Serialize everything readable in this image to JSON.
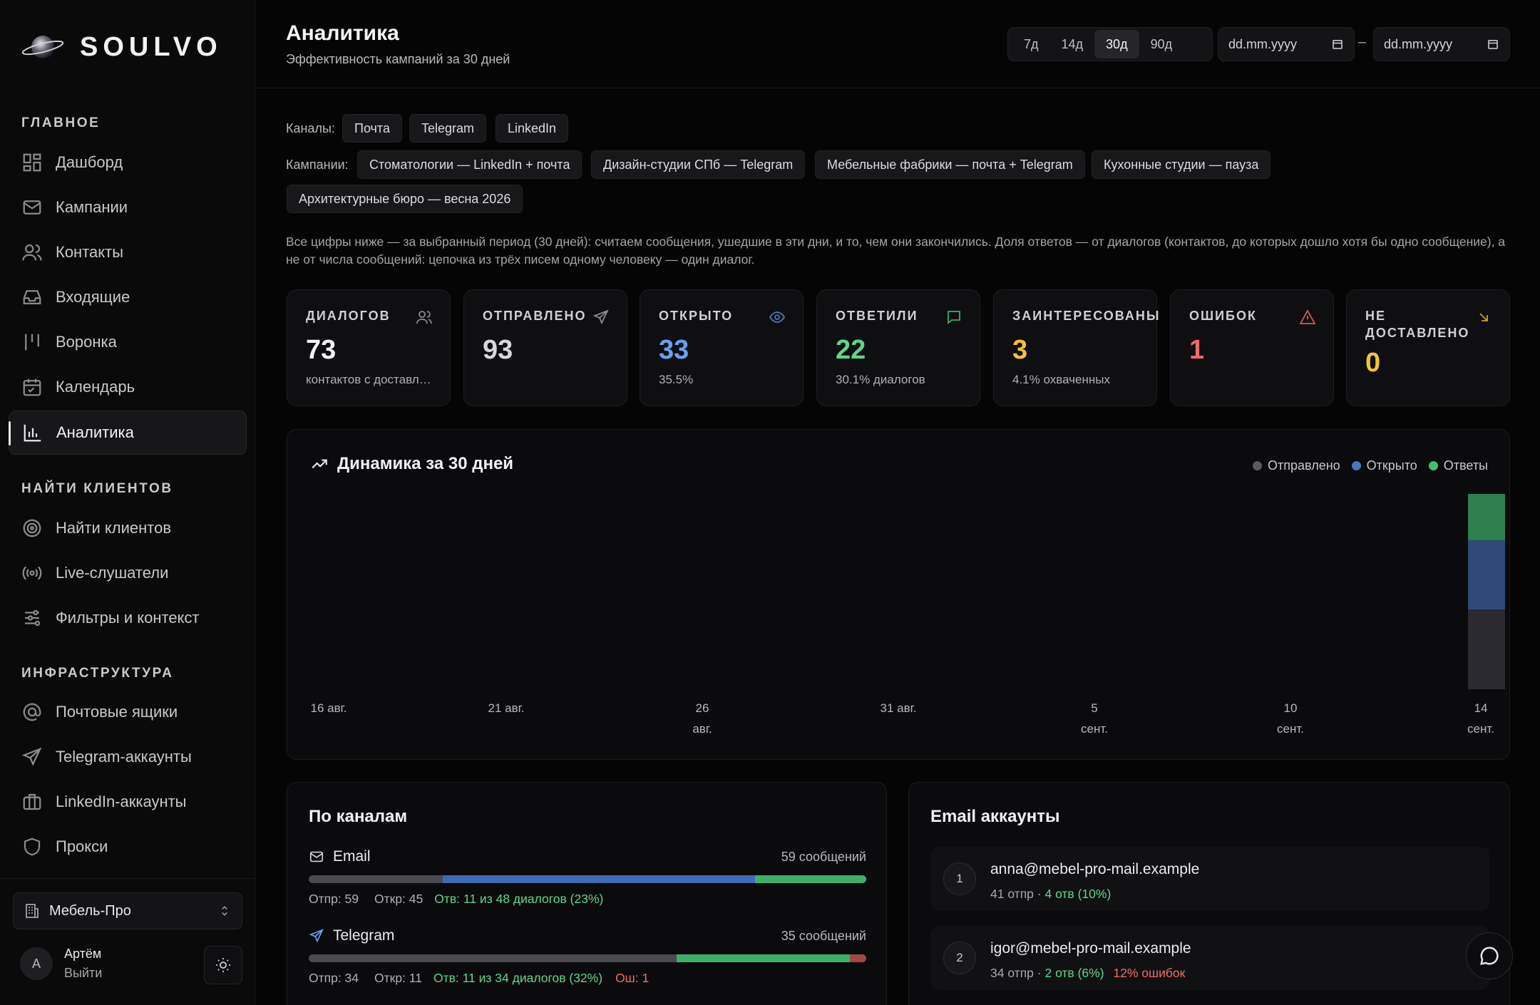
{
  "brand": {
    "name": "SOULVO"
  },
  "sidebar": {
    "sections": {
      "main": "ГЛАВНОЕ",
      "find": "НАЙТИ КЛИЕНТОВ",
      "infra": "ИНФРАСТРУКТУРА"
    },
    "items": [
      {
        "label": "Дашборд",
        "icon": "dashboard-icon"
      },
      {
        "label": "Кампании",
        "icon": "mail-icon"
      },
      {
        "label": "Контакты",
        "icon": "users-icon"
      },
      {
        "label": "Входящие",
        "icon": "inbox-icon"
      },
      {
        "label": "Воронка",
        "icon": "funnel-icon"
      },
      {
        "label": "Календарь",
        "icon": "calendar-icon"
      },
      {
        "label": "Аналитика",
        "icon": "chart-icon",
        "active": true
      },
      {
        "label": "Найти клиентов",
        "icon": "target-icon"
      },
      {
        "label": "Live-слушатели",
        "icon": "broadcast-icon"
      },
      {
        "label": "Фильтры и контекст",
        "icon": "sliders-icon"
      },
      {
        "label": "Почтовые ящики",
        "icon": "at-icon"
      },
      {
        "label": "Telegram-аккаунты",
        "icon": "send-icon"
      },
      {
        "label": "LinkedIn-аккаунты",
        "icon": "briefcase-icon"
      },
      {
        "label": "Прокси",
        "icon": "shield-icon"
      }
    ],
    "org": "Мебель-Про",
    "user": {
      "initial": "А",
      "name": "Артём",
      "logout": "Выйти"
    }
  },
  "header": {
    "title": "Аналитика",
    "subtitle": "Эффективность кампаний за 30 дней",
    "periods": [
      "7д",
      "14д",
      "30д",
      "90д"
    ],
    "active_period": "30д",
    "date_from_placeholder": "dd.mm.yyyy",
    "date_to_placeholder": "dd.mm.yyyy",
    "date_sep": "–"
  },
  "filters": {
    "channels_label": "Каналы:",
    "channels": [
      "Почта",
      "Telegram",
      "LinkedIn"
    ],
    "campaigns_label": "Кампании:",
    "campaigns": [
      "Стоматологии — LinkedIn + почта",
      "Дизайн-студии СПб — Telegram",
      "Мебельные фабрики — почта + Telegram",
      "Кухонные студии — пауза",
      "Архитектурные бюро — весна 2026"
    ]
  },
  "note": "Все цифры ниже — за выбранный период (30 дней): считаем сообщения, ушедшие в эти дни, и то, чем они закончились. Доля ответов — от диалогов (контактов, до которых дошло хотя бы одно сообщение), а не от числа сообщений: цепочка из трёх писем одному человеку — один диалог.",
  "stats": [
    {
      "label": "ДИАЛОГОВ",
      "value": "73",
      "sub": "контактов с доставленными",
      "color": "#f2f2f4",
      "icon": "users-icon"
    },
    {
      "label": "ОТПРАВЛЕНО",
      "value": "93",
      "sub": "",
      "color": "#d8d8dc",
      "icon": "send-icon"
    },
    {
      "label": "ОТКРЫТО",
      "value": "33",
      "sub": "35.5%",
      "color": "#6aa0f2",
      "icon": "eye-icon"
    },
    {
      "label": "ОТВЕТИЛИ",
      "value": "22",
      "sub": "30.1% диалогов",
      "color": "#5fd68a",
      "icon": "message-icon"
    },
    {
      "label": "ЗАИНТЕРЕСОВАНЫ",
      "value": "3",
      "sub": "4.1% охваченных",
      "color": "#f2c23a",
      "icon": ""
    },
    {
      "label": "ОШИБОК",
      "value": "1",
      "sub": "",
      "color": "#f06a6a",
      "icon": "alert-icon"
    },
    {
      "label": "НЕ ДОСТАВЛЕНО",
      "value": "0",
      "sub": "",
      "color": "#f2c23a",
      "icon": "arrow-down-right-icon"
    }
  ],
  "chart": {
    "title": "Динамика за 30 дней",
    "legend": [
      {
        "name": "Отправлено",
        "color": "#5a5a60"
      },
      {
        "name": "Открыто",
        "color": "#4a78c0"
      },
      {
        "name": "Ответы",
        "color": "#3fbf6a"
      }
    ]
  },
  "chart_data": {
    "type": "bar",
    "title": "Динамика за 30 дней",
    "x_ticks": [
      "16 авг.",
      "21 авг.",
      "26 авг.",
      "31 авг.",
      "5 сент.",
      "10 сент.",
      "14 сент."
    ],
    "categories": [
      "14 сент."
    ],
    "series": [
      {
        "name": "Отправлено",
        "values": [
          93
        ]
      },
      {
        "name": "Открыто",
        "values": [
          33
        ]
      },
      {
        "name": "Ответы",
        "values": [
          22
        ]
      }
    ],
    "stacked": true
  },
  "channels": {
    "title": "По каналам",
    "items": [
      {
        "name": "Email",
        "icon": "mail-icon",
        "count": "59 сообщений",
        "sent": "Отпр: 59",
        "opened": "Откр: 45",
        "replies": "Отв: 11 из 48 диалогов (23%)",
        "errors": "",
        "bar": [
          {
            "share": 0.24,
            "color": "#4a4a50"
          },
          {
            "share": 0.56,
            "color": "#3f6bb5"
          },
          {
            "share": 0.2,
            "color": "#3fae6a"
          }
        ]
      },
      {
        "name": "Telegram",
        "icon": "send-icon",
        "count": "35 сообщений",
        "sent": "Отпр: 34",
        "opened": "Откр: 11",
        "replies": "Отв: 11 из 34 диалогов (32%)",
        "errors": "Ош: 1",
        "bar": [
          {
            "share": 0.66,
            "color": "#4a4a50"
          },
          {
            "share": 0.31,
            "color": "#3fae6a"
          },
          {
            "share": 0.03,
            "color": "#a04848"
          }
        ]
      }
    ]
  },
  "accounts": {
    "title": "Email аккаунты",
    "items": [
      {
        "num": "1",
        "email": "anna@mebel-pro-mail.example",
        "sent": "41 отпр ·",
        "replies": "4 отв (10%)",
        "errors": ""
      },
      {
        "num": "2",
        "email": "igor@mebel-pro-mail.example",
        "sent": "34 отпр ·",
        "replies": "2 отв (6%)",
        "errors": "12% ошибок"
      }
    ]
  }
}
